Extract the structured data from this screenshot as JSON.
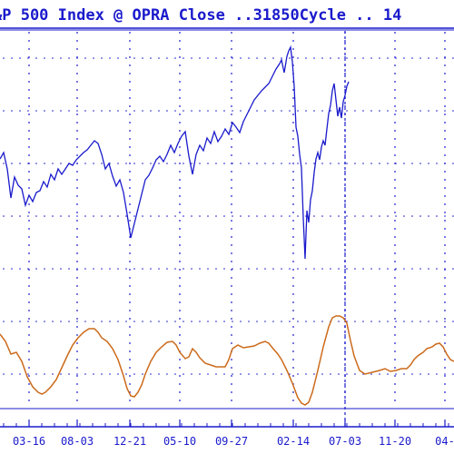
{
  "chart_data": {
    "type": "line",
    "title": "&P 500 Index @ OPRA Close ..31850Cycle .. 14",
    "x_tick_labels": [
      "03-16",
      "08-03",
      "12-21",
      "05-10",
      "09-27",
      "02-14",
      "07-03",
      "11-20",
      "04-"
    ],
    "grid": true,
    "marker_line_tick": "07-03",
    "colors": {
      "price": "#1a1acc",
      "cycle": "#cc6a1a",
      "grid": "#1a1acc",
      "frame": "#1a1acc"
    },
    "series": [
      {
        "role": "price",
        "points": [
          [
            0,
            175
          ],
          [
            4,
            168
          ],
          [
            8,
            186
          ],
          [
            12,
            218
          ],
          [
            16,
            195
          ],
          [
            20,
            204
          ],
          [
            24,
            208
          ],
          [
            28,
            226
          ],
          [
            32,
            215
          ],
          [
            36,
            222
          ],
          [
            40,
            212
          ],
          [
            44,
            210
          ],
          [
            48,
            200
          ],
          [
            52,
            206
          ],
          [
            56,
            192
          ],
          [
            60,
            198
          ],
          [
            64,
            186
          ],
          [
            68,
            192
          ],
          [
            72,
            186
          ],
          [
            76,
            180
          ],
          [
            80,
            182
          ],
          [
            84,
            176
          ],
          [
            88,
            172
          ],
          [
            92,
            168
          ],
          [
            96,
            165
          ],
          [
            100,
            160
          ],
          [
            104,
            155
          ],
          [
            108,
            158
          ],
          [
            112,
            170
          ],
          [
            116,
            186
          ],
          [
            120,
            180
          ],
          [
            124,
            194
          ],
          [
            128,
            205
          ],
          [
            132,
            198
          ],
          [
            136,
            212
          ],
          [
            140,
            236
          ],
          [
            144,
            262
          ],
          [
            148,
            246
          ],
          [
            152,
            230
          ],
          [
            156,
            214
          ],
          [
            160,
            198
          ],
          [
            164,
            193
          ],
          [
            168,
            185
          ],
          [
            172,
            176
          ],
          [
            176,
            172
          ],
          [
            180,
            178
          ],
          [
            184,
            170
          ],
          [
            188,
            160
          ],
          [
            192,
            168
          ],
          [
            196,
            158
          ],
          [
            200,
            150
          ],
          [
            204,
            145
          ],
          [
            208,
            172
          ],
          [
            212,
            192
          ],
          [
            216,
            170
          ],
          [
            220,
            160
          ],
          [
            224,
            166
          ],
          [
            228,
            152
          ],
          [
            232,
            158
          ],
          [
            236,
            145
          ],
          [
            240,
            156
          ],
          [
            244,
            150
          ],
          [
            248,
            142
          ],
          [
            252,
            148
          ],
          [
            256,
            135
          ],
          [
            260,
            140
          ],
          [
            264,
            146
          ],
          [
            268,
            134
          ],
          [
            272,
            126
          ],
          [
            276,
            118
          ],
          [
            280,
            110
          ],
          [
            284,
            105
          ],
          [
            288,
            100
          ],
          [
            292,
            96
          ],
          [
            296,
            92
          ],
          [
            300,
            84
          ],
          [
            304,
            76
          ],
          [
            308,
            70
          ],
          [
            310,
            66
          ],
          [
            313,
            80
          ],
          [
            316,
            62
          ],
          [
            318,
            56
          ],
          [
            320,
            52
          ],
          [
            322,
            68
          ],
          [
            324,
            95
          ],
          [
            326,
            140
          ],
          [
            328,
            150
          ],
          [
            330,
            170
          ],
          [
            332,
            185
          ],
          [
            334,
            240
          ],
          [
            336,
            285
          ],
          [
            338,
            232
          ],
          [
            340,
            245
          ],
          [
            342,
            220
          ],
          [
            344,
            210
          ],
          [
            346,
            190
          ],
          [
            348,
            175
          ],
          [
            350,
            168
          ],
          [
            352,
            176
          ],
          [
            354,
            162
          ],
          [
            356,
            155
          ],
          [
            358,
            160
          ],
          [
            360,
            142
          ],
          [
            362,
            125
          ],
          [
            364,
            116
          ],
          [
            366,
            100
          ],
          [
            368,
            92
          ],
          [
            370,
            110
          ],
          [
            372,
            128
          ],
          [
            374,
            118
          ],
          [
            376,
            130
          ],
          [
            378,
            112
          ],
          [
            380,
            105
          ],
          [
            382,
            95
          ],
          [
            384,
            90
          ]
        ]
      },
      {
        "role": "cycle",
        "points": [
          [
            0,
            368
          ],
          [
            6,
            376
          ],
          [
            12,
            390
          ],
          [
            18,
            388
          ],
          [
            24,
            398
          ],
          [
            30,
            415
          ],
          [
            36,
            426
          ],
          [
            42,
            432
          ],
          [
            46,
            434
          ],
          [
            50,
            432
          ],
          [
            56,
            426
          ],
          [
            62,
            418
          ],
          [
            68,
            405
          ],
          [
            74,
            392
          ],
          [
            80,
            380
          ],
          [
            86,
            372
          ],
          [
            92,
            366
          ],
          [
            98,
            362
          ],
          [
            104,
            362
          ],
          [
            108,
            366
          ],
          [
            112,
            372
          ],
          [
            118,
            376
          ],
          [
            124,
            384
          ],
          [
            130,
            396
          ],
          [
            136,
            414
          ],
          [
            140,
            428
          ],
          [
            144,
            436
          ],
          [
            148,
            437
          ],
          [
            152,
            432
          ],
          [
            156,
            424
          ],
          [
            160,
            412
          ],
          [
            166,
            398
          ],
          [
            172,
            388
          ],
          [
            178,
            382
          ],
          [
            184,
            377
          ],
          [
            190,
            376
          ],
          [
            194,
            380
          ],
          [
            198,
            388
          ],
          [
            204,
            395
          ],
          [
            208,
            393
          ],
          [
            212,
            384
          ],
          [
            216,
            388
          ],
          [
            220,
            394
          ],
          [
            226,
            400
          ],
          [
            232,
            402
          ],
          [
            238,
            404
          ],
          [
            244,
            404
          ],
          [
            248,
            404
          ],
          [
            252,
            396
          ],
          [
            256,
            384
          ],
          [
            262,
            380
          ],
          [
            268,
            383
          ],
          [
            274,
            382
          ],
          [
            280,
            381
          ],
          [
            286,
            378
          ],
          [
            292,
            376
          ],
          [
            296,
            378
          ],
          [
            300,
            383
          ],
          [
            306,
            390
          ],
          [
            310,
            396
          ],
          [
            316,
            408
          ],
          [
            322,
            422
          ],
          [
            328,
            438
          ],
          [
            332,
            444
          ],
          [
            336,
            446
          ],
          [
            340,
            443
          ],
          [
            344,
            432
          ],
          [
            350,
            408
          ],
          [
            356,
            382
          ],
          [
            362,
            360
          ],
          [
            366,
            350
          ],
          [
            370,
            348
          ],
          [
            374,
            348
          ],
          [
            378,
            350
          ],
          [
            382,
            356
          ],
          [
            386,
            375
          ],
          [
            390,
            392
          ],
          [
            396,
            408
          ],
          [
            402,
            412
          ],
          [
            410,
            410
          ],
          [
            418,
            408
          ],
          [
            424,
            406
          ],
          [
            430,
            409
          ],
          [
            436,
            408
          ],
          [
            442,
            406
          ],
          [
            448,
            406
          ],
          [
            452,
            402
          ],
          [
            456,
            396
          ],
          [
            460,
            392
          ],
          [
            466,
            388
          ],
          [
            470,
            384
          ],
          [
            476,
            382
          ],
          [
            480,
            379
          ],
          [
            484,
            378
          ],
          [
            488,
            382
          ],
          [
            492,
            390
          ],
          [
            496,
            396
          ],
          [
            500,
            398
          ]
        ]
      }
    ]
  }
}
